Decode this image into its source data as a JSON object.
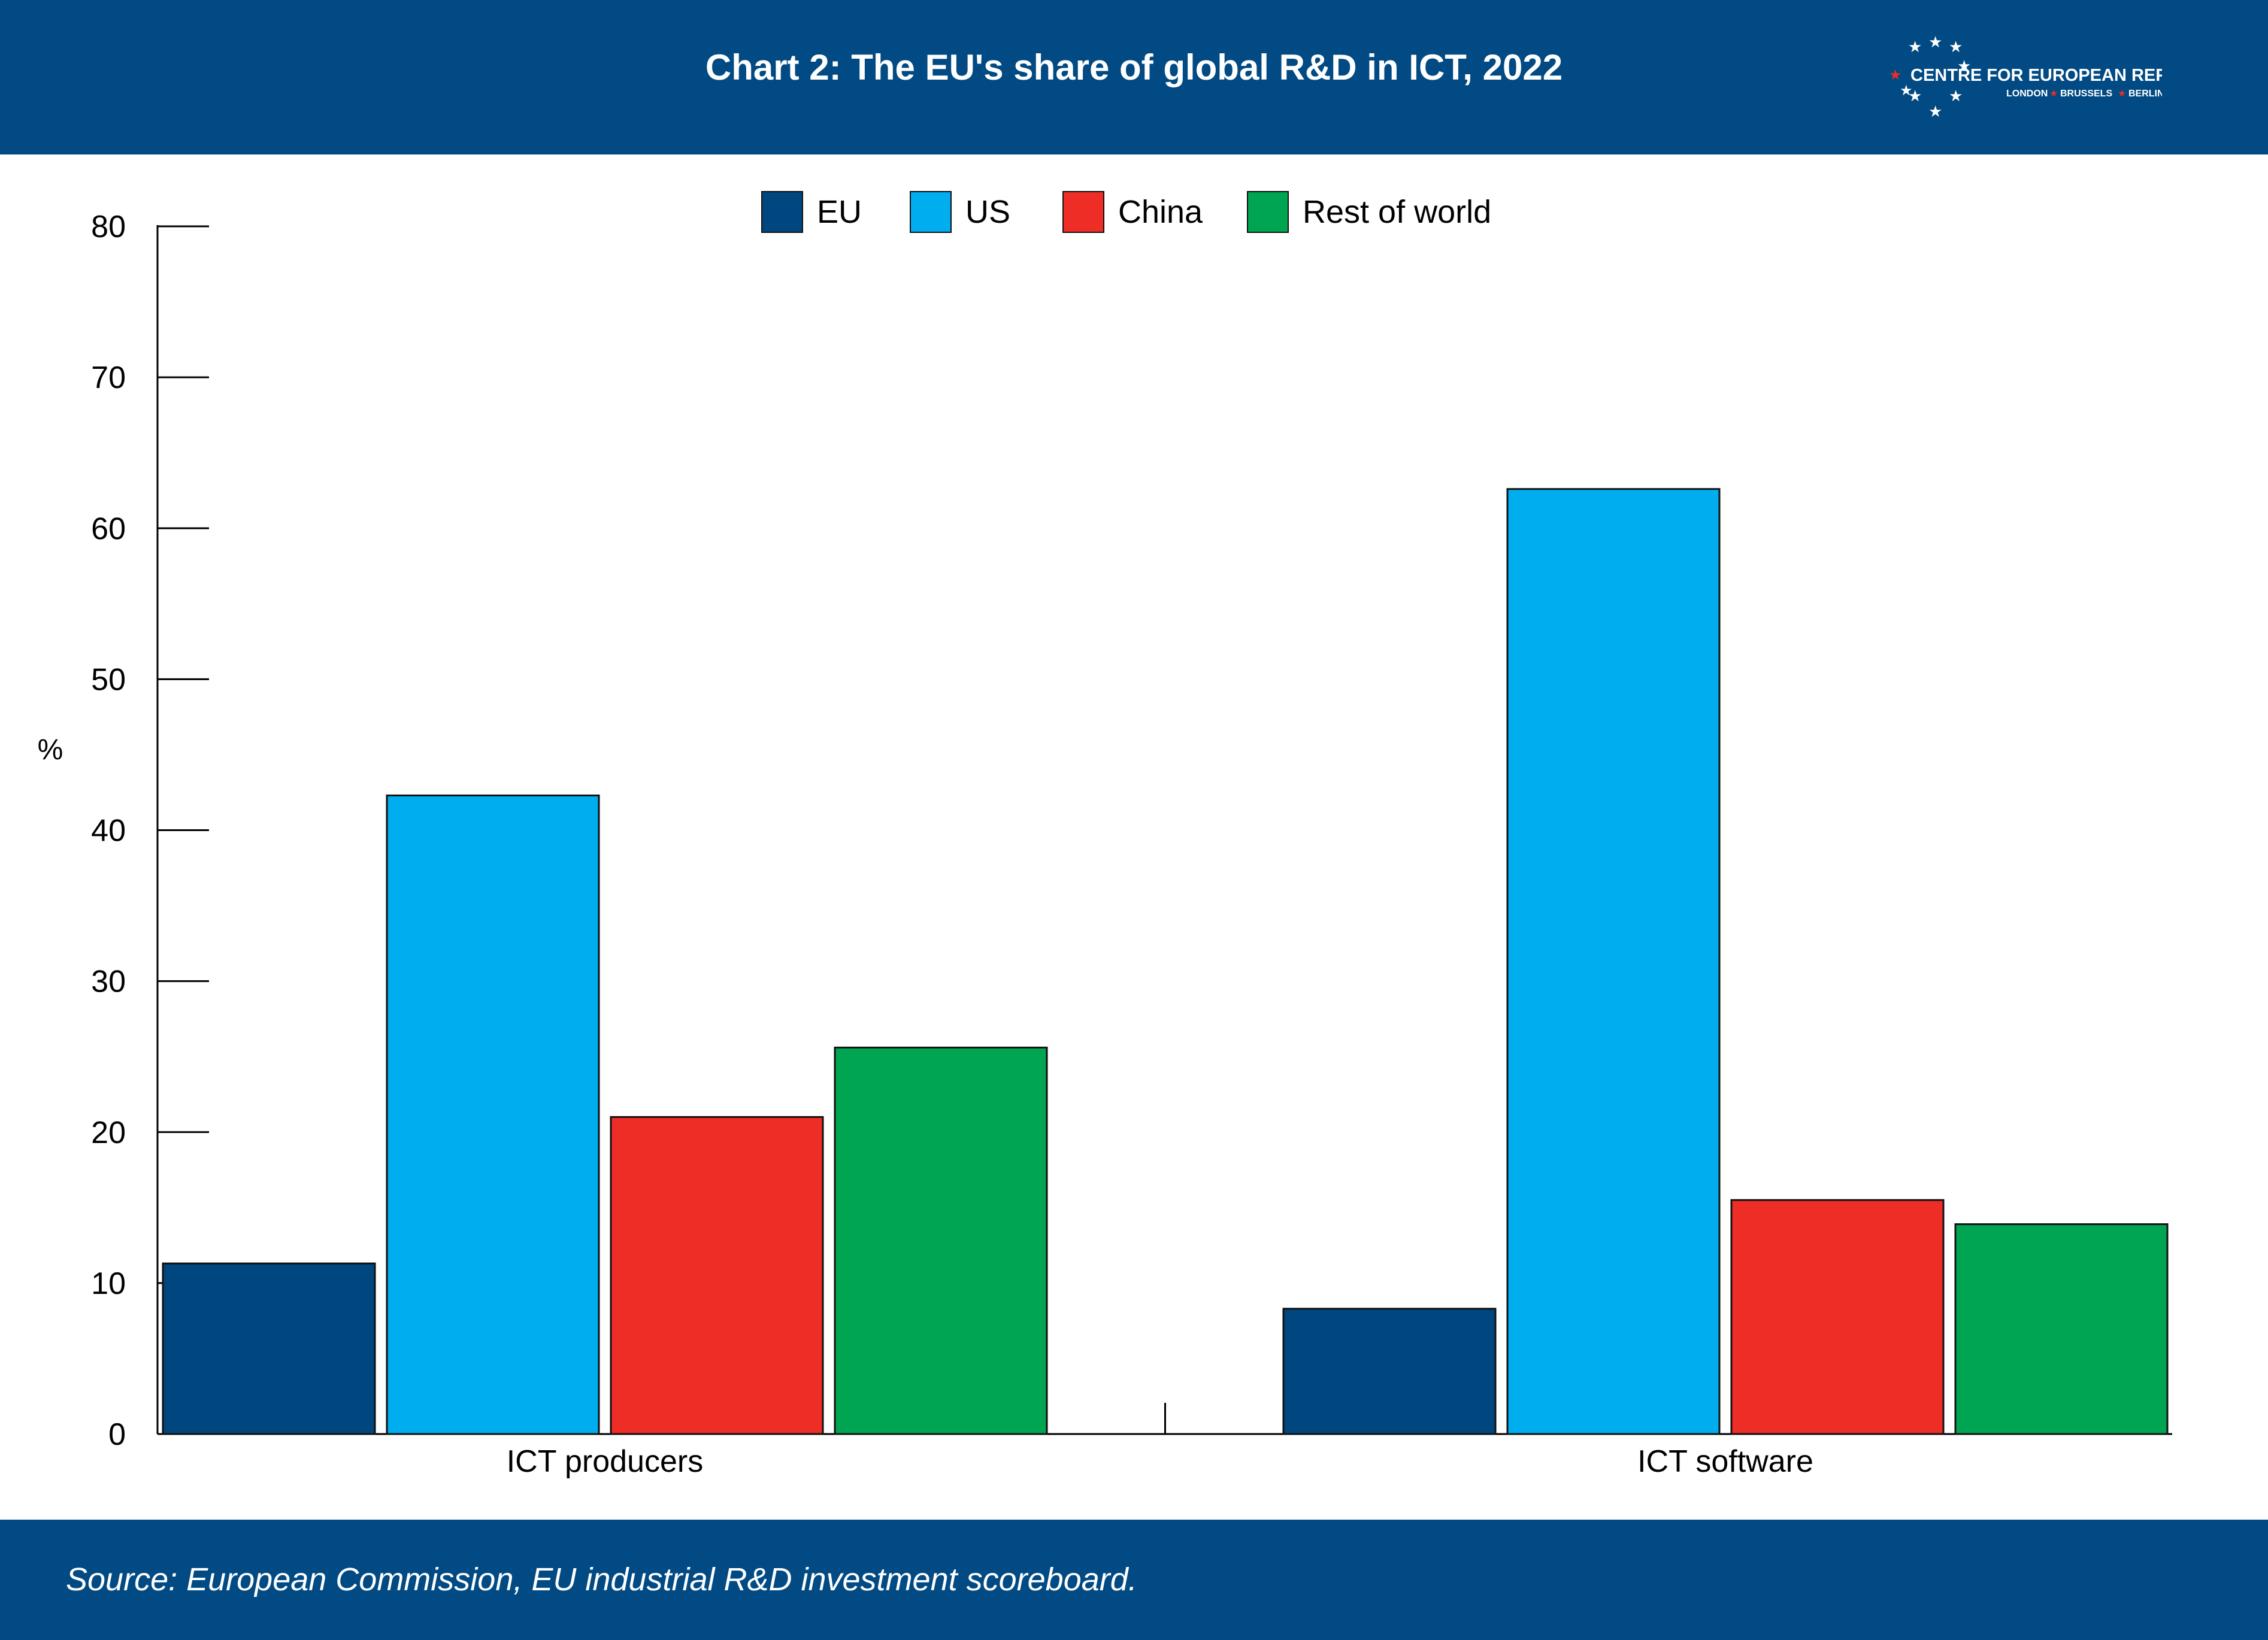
{
  "header": {
    "title": "Chart 2: The EU's share of global R&D in ICT, 2022",
    "logo": {
      "name": "CENTRE FOR EUROPEAN REFORM",
      "cities": [
        "LONDON",
        "BRUSSELS",
        "BERLIN"
      ]
    }
  },
  "footer": {
    "source": "Source: European Commission, EU industrial R&D investment scoreboard."
  },
  "colors": {
    "header_bg": "#014a83",
    "eu": "#00467f",
    "us": "#00adee",
    "china": "#ee2d27",
    "rest_of_world": "#00a552"
  },
  "chart_data": {
    "type": "bar",
    "title": "Chart 2: The EU's share of global R&D in ICT, 2022",
    "categories": [
      "ICT producers",
      "ICT software"
    ],
    "series": [
      {
        "name": "EU",
        "values": [
          11.3,
          8.3
        ]
      },
      {
        "name": "US",
        "values": [
          42.3,
          62.6
        ]
      },
      {
        "name": "China",
        "values": [
          21,
          15.5
        ]
      },
      {
        "name": "Rest of world",
        "values": [
          25.6,
          13.9
        ]
      }
    ],
    "ylabel": "%",
    "ylim": [
      0,
      80
    ],
    "yticks": [
      0,
      10,
      20,
      30,
      40,
      50,
      60,
      70,
      80
    ],
    "grid": false,
    "legend": "top-center"
  }
}
